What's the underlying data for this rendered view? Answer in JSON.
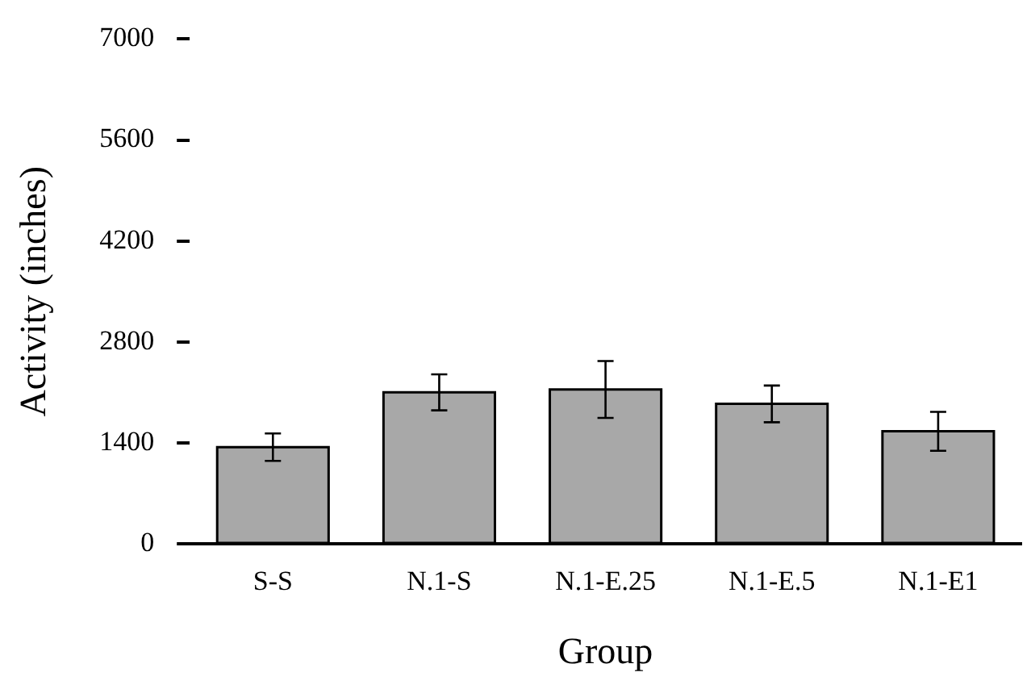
{
  "chart_data": {
    "type": "bar",
    "xlabel": "Group",
    "ylabel": "Activity (inches)",
    "categories": [
      "S-S",
      "N.1-S",
      "N.1-E.25",
      "N.1-E.5",
      "N.1-E1"
    ],
    "values": [
      1340,
      2100,
      2140,
      1940,
      1560
    ],
    "errors": [
      190,
      250,
      395,
      255,
      270
    ],
    "color": "#a8a8a8",
    "ylim": [
      0,
      7000
    ],
    "yticks": [
      0,
      1400,
      2800,
      4200,
      5600,
      7000
    ],
    "grid": false,
    "legend": false
  }
}
